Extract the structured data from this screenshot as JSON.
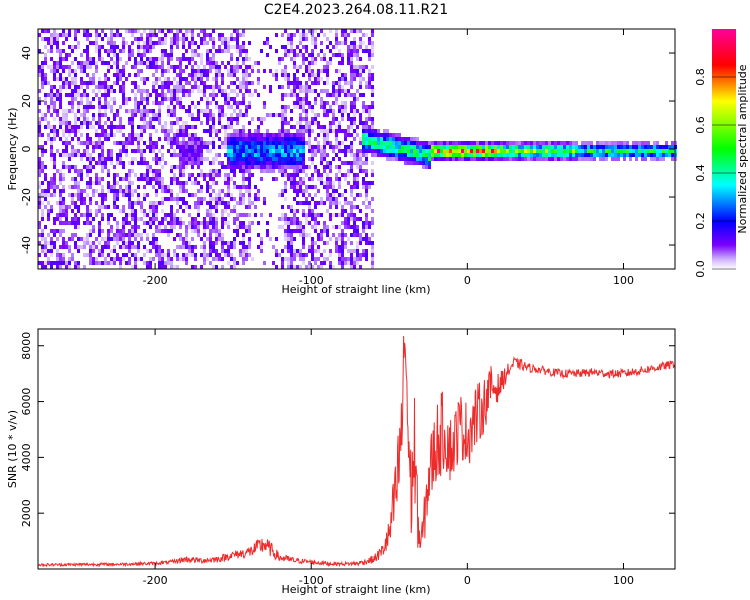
{
  "title": "C2E4.2023.264.08.11.R21",
  "chart_data": [
    {
      "type": "heatmap",
      "xlabel": "Height of straight line (km)",
      "ylabel": "Frequency (Hz)",
      "xlim": [
        -275,
        133
      ],
      "ylim": [
        -50,
        50
      ],
      "xticks": [
        -200,
        -100,
        0,
        100
      ],
      "yticks": [
        -40,
        -20,
        0,
        20,
        40
      ],
      "grid": false,
      "colorbar": {
        "label": "Normalized spectral amplitude",
        "range": [
          0.0,
          1.0
        ],
        "ticks": [
          0.0,
          0.2,
          0.4,
          0.6,
          0.8
        ],
        "colormap": [
          "#ffffff",
          "#6a00ff",
          "#0000ff",
          "#00ffff",
          "#00ff00",
          "#ffff00",
          "#ff0000",
          "#ff0099"
        ]
      },
      "features": [
        {
          "x_range": [
            -275,
            -60
          ],
          "freq_range": [
            -50,
            50
          ],
          "amplitude": 0.08,
          "desc": "broadband noise"
        },
        {
          "x_range": [
            -185,
            -170
          ],
          "freq_center": 0,
          "freq_halfwidth": 8,
          "amplitude": 0.12
        },
        {
          "x_range": [
            -155,
            -105
          ],
          "freq_center": 0,
          "freq_halfwidth": 8,
          "amplitude": 0.3
        },
        {
          "x_range": [
            -68,
            -25
          ],
          "freq_center_start": 5,
          "freq_center_end": -2,
          "freq_halfwidth": 5,
          "amplitude": 0.45
        },
        {
          "x_range": [
            -25,
            133
          ],
          "freq_center": 0,
          "freq_halfwidth": 3,
          "amplitude": 0.85
        }
      ]
    },
    {
      "type": "line",
      "xlabel": "Height of straight line (km)",
      "ylabel": "SNR (10 * v/v)",
      "xlim": [
        -275,
        133
      ],
      "ylim": [
        0,
        8600
      ],
      "xticks": [
        -200,
        -100,
        0,
        100
      ],
      "yticks": [
        2000,
        4000,
        6000,
        8000
      ],
      "grid": false,
      "color": "#ee2b2b",
      "x": [
        -275,
        -250,
        -225,
        -200,
        -190,
        -180,
        -170,
        -160,
        -150,
        -140,
        -130,
        -120,
        -110,
        -100,
        -90,
        -80,
        -70,
        -60,
        -55,
        -50,
        -45,
        -42,
        -40,
        -38,
        -36,
        -34,
        -32,
        -30,
        -28,
        -25,
        -20,
        -15,
        -10,
        -5,
        0,
        5,
        10,
        15,
        20,
        25,
        30,
        35,
        40,
        50,
        60,
        70,
        80,
        90,
        100,
        110,
        120,
        133
      ],
      "y": [
        150,
        160,
        170,
        200,
        250,
        350,
        300,
        350,
        500,
        600,
        900,
        400,
        300,
        250,
        200,
        180,
        200,
        350,
        600,
        1200,
        3000,
        5000,
        8600,
        5000,
        2500,
        4500,
        2000,
        800,
        1500,
        3200,
        4500,
        5000,
        4200,
        5200,
        4800,
        5400,
        5800,
        6500,
        6500,
        7000,
        7400,
        7300,
        7200,
        7100,
        7000,
        7000,
        7050,
        7000,
        7000,
        7100,
        7200,
        7350
      ],
      "jitter": [
        50,
        50,
        50,
        60,
        60,
        120,
        100,
        120,
        150,
        200,
        350,
        150,
        100,
        80,
        80,
        60,
        80,
        150,
        250,
        600,
        1500,
        2000,
        1000,
        2500,
        1500,
        2500,
        1200,
        500,
        800,
        1200,
        1500,
        1500,
        1200,
        1200,
        1200,
        1200,
        1000,
        800,
        500,
        300,
        200,
        200,
        150,
        150,
        150,
        150,
        150,
        150,
        150,
        150,
        150,
        150
      ]
    }
  ]
}
